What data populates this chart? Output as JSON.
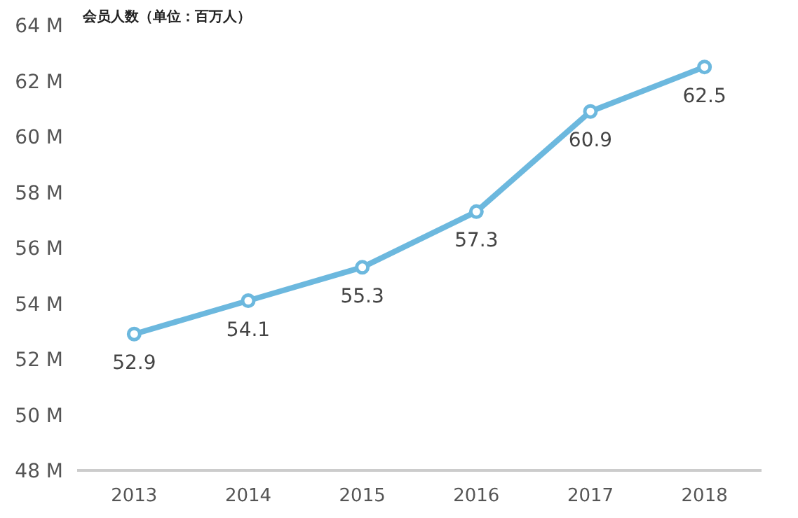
{
  "chart_data": {
    "type": "line",
    "title": "会员人数（单位：百万人）",
    "categories": [
      "2013",
      "2014",
      "2015",
      "2016",
      "2017",
      "2018"
    ],
    "series": [
      {
        "color": "#6cb8de",
        "values": [
          52.9,
          54.1,
          55.3,
          57.3,
          60.9,
          62.5
        ]
      }
    ],
    "ylim": [
      48,
      64
    ],
    "yticks": [
      {
        "value": 48,
        "label": "48 M"
      },
      {
        "value": 50,
        "label": "50 M"
      },
      {
        "value": 52,
        "label": "52 M"
      },
      {
        "value": 54,
        "label": "54 M"
      },
      {
        "value": 56,
        "label": "56 M"
      },
      {
        "value": 58,
        "label": "58 M"
      },
      {
        "value": 60,
        "label": "60 M"
      },
      {
        "value": 62,
        "label": "62 M"
      },
      {
        "value": 64,
        "label": "64 M"
      }
    ],
    "marker": "circle",
    "data_labels": true
  }
}
